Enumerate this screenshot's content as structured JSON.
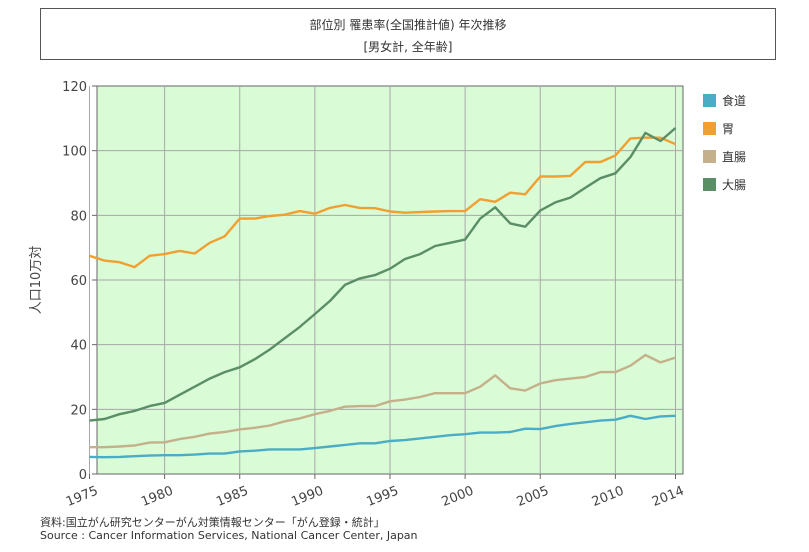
{
  "header": {
    "title": "部位別 罹患率(全国推計値) 年次推移",
    "subtitle": "[男女計, 全年齢]"
  },
  "source": {
    "line1": "資料:国立がん研究センターがん対策情報センター「がん登録・統計」",
    "line2": "Source : Cancer Information Services, National Cancer Center, Japan"
  },
  "chart_data": {
    "type": "line",
    "ylabel": "人口10万対",
    "xlabel": "",
    "ylim": [
      0,
      120
    ],
    "yticks": [
      0,
      20,
      40,
      60,
      80,
      100,
      120
    ],
    "xlim": [
      1975,
      2014
    ],
    "xticks": [
      1975,
      1980,
      1985,
      1990,
      1995,
      2000,
      2005,
      2010,
      2014
    ],
    "x": [
      1975,
      1976,
      1977,
      1978,
      1979,
      1980,
      1981,
      1982,
      1983,
      1984,
      1985,
      1986,
      1987,
      1988,
      1989,
      1990,
      1991,
      1992,
      1993,
      1994,
      1995,
      1996,
      1997,
      1998,
      1999,
      2000,
      2001,
      2002,
      2003,
      2004,
      2005,
      2006,
      2007,
      2008,
      2009,
      2010,
      2011,
      2012,
      2013,
      2014
    ],
    "grid": true,
    "background": "#d9fbd6",
    "legend_position": "right",
    "series": [
      {
        "name": "食道",
        "color": "#4bacc6",
        "values": [
          5.3,
          5.2,
          5.3,
          5.5,
          5.7,
          5.8,
          5.8,
          6.0,
          6.3,
          6.3,
          7.0,
          7.2,
          7.6,
          7.6,
          7.6,
          8.0,
          8.5,
          9.0,
          9.5,
          9.5,
          10.2,
          10.5,
          11.0,
          11.5,
          12.0,
          12.3,
          12.8,
          12.8,
          13.0,
          14.0,
          13.9,
          14.8,
          15.5,
          16.0,
          16.5,
          16.8,
          18.0,
          17.0,
          17.8,
          18.0
        ]
      },
      {
        "name": "胃",
        "color": "#f0a030",
        "values": [
          67.5,
          66.0,
          65.5,
          64.0,
          67.5,
          68.0,
          69.0,
          68.2,
          71.5,
          73.5,
          79.0,
          79.0,
          79.8,
          80.2,
          81.3,
          80.5,
          82.3,
          83.2,
          82.3,
          82.2,
          81.2,
          80.8,
          81.0,
          81.2,
          81.3,
          81.3,
          85.0,
          84.2,
          87.0,
          86.5,
          92.0,
          92.0,
          92.2,
          96.5,
          96.5,
          98.5,
          103.8,
          104.0,
          104.0,
          102.0
        ]
      },
      {
        "name": "直腸",
        "color": "#c4b08a",
        "values": [
          8.3,
          8.3,
          8.5,
          8.8,
          9.7,
          9.8,
          10.8,
          11.5,
          12.5,
          13.0,
          13.8,
          14.3,
          15.0,
          16.3,
          17.2,
          18.5,
          19.5,
          20.8,
          21.0,
          21.0,
          22.5,
          23.0,
          23.8,
          25.0,
          25.0,
          25.0,
          27.0,
          30.5,
          26.5,
          25.8,
          28.0,
          29.0,
          29.5,
          30.0,
          31.5,
          31.5,
          33.5,
          36.8,
          34.5,
          36.0
        ]
      },
      {
        "name": "大腸",
        "color": "#5a8e66",
        "values": [
          16.5,
          17.0,
          18.5,
          19.5,
          21.0,
          22.0,
          24.5,
          27.0,
          29.5,
          31.5,
          33.0,
          35.5,
          38.5,
          42.0,
          45.5,
          49.5,
          53.5,
          58.5,
          60.5,
          61.5,
          63.5,
          66.5,
          68.0,
          70.5,
          71.5,
          72.5,
          79.0,
          82.5,
          77.5,
          76.5,
          81.5,
          84.0,
          85.5,
          88.5,
          91.5,
          93.0,
          98.0,
          105.5,
          103.0,
          107.0
        ]
      }
    ]
  }
}
